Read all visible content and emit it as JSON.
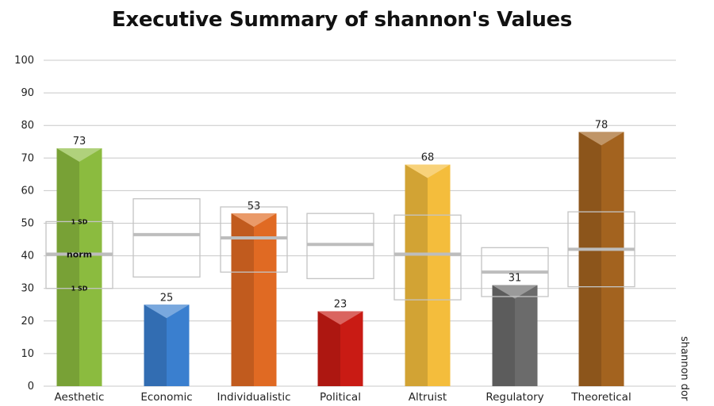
{
  "chart_data": {
    "type": "bar",
    "title": "Executive Summary of shannon's Values",
    "side_label": "shannon dor",
    "categories": [
      "Aesthetic",
      "Economic",
      "Individualistic",
      "Political",
      "Altruist",
      "Regulatory",
      "Theoretical"
    ],
    "values": [
      73,
      25,
      53,
      23,
      68,
      31,
      78
    ],
    "norm_range": [
      {
        "low": 30,
        "mean": 40.5,
        "high": 50.5
      },
      {
        "low": 33.5,
        "mean": 46.5,
        "high": 57.5
      },
      {
        "low": 35,
        "mean": 45.5,
        "high": 55
      },
      {
        "low": 33,
        "mean": 43.5,
        "high": 53
      },
      {
        "low": 26.5,
        "mean": 40.5,
        "high": 52.5
      },
      {
        "low": 27.5,
        "mean": 35,
        "high": 42.5
      },
      {
        "low": 30.5,
        "mean": 42,
        "high": 53.5
      }
    ],
    "colors": [
      "#8bbb3f",
      "#3a7fcf",
      "#e06a23",
      "#c91b14",
      "#f4bd3c",
      "#6b6b6b",
      "#a3631f"
    ],
    "annotations": {
      "norm_label": "norm",
      "sd_upper_label": "1 SD",
      "sd_lower_label": "1 SD"
    },
    "ylim": [
      0,
      100
    ],
    "yticks": [
      0,
      10,
      20,
      30,
      40,
      50,
      60,
      70,
      80,
      90,
      100
    ],
    "grid": true,
    "xlabel": "",
    "ylabel": ""
  }
}
